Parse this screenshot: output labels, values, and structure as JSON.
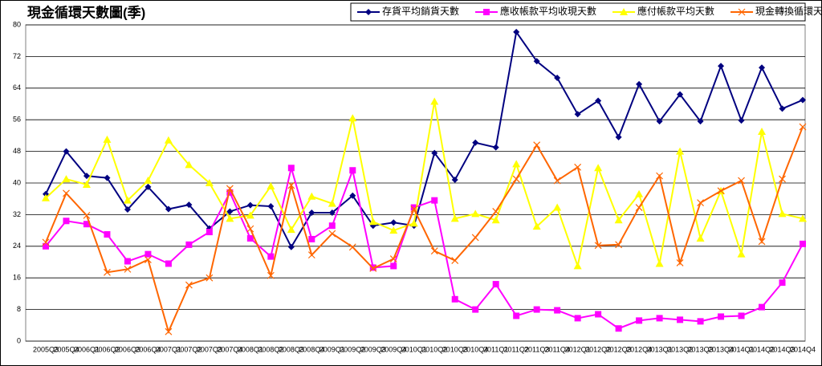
{
  "chart_data": {
    "type": "line",
    "title": "現金循環天數圖(季)",
    "categories": [
      "2005Q3",
      "2005Q4",
      "2006Q1",
      "2006Q2",
      "2006Q3",
      "2006Q4",
      "2007Q1",
      "2007Q2",
      "2007Q3",
      "2007Q4",
      "2008Q1",
      "2008Q2",
      "2008Q3",
      "2008Q4",
      "2009Q1",
      "2009Q2",
      "2009Q3",
      "2009Q4",
      "2010Q1",
      "2010Q2",
      "2010Q3",
      "2010Q4",
      "2011Q1",
      "2011Q2",
      "2011Q3",
      "2011Q4",
      "2012Q1",
      "2012Q2",
      "2012Q3",
      "2012Q4",
      "2013Q1",
      "2013Q2",
      "2013Q3",
      "2013Q4",
      "2014Q1",
      "2014Q2",
      "2014Q3",
      "2014Q4"
    ],
    "series": [
      {
        "name": "存貨平均銷貨天數",
        "color": "#000080",
        "marker": "diamond",
        "values": [
          37.2,
          48,
          41.8,
          41.3,
          33.3,
          39,
          33.4,
          34.5,
          28.5,
          32.8,
          34.4,
          34.1,
          23.8,
          32.5,
          32.5,
          36.8,
          29.2,
          30,
          29.2,
          47.6,
          40.8,
          50.2,
          49,
          78.2,
          70.8,
          66.6,
          57.4,
          60.8,
          51.6,
          65,
          55.6,
          62.4,
          55.6,
          69.6,
          55.8,
          69.2,
          58.8,
          61
        ]
      },
      {
        "name": "應收帳款平均收現天數",
        "color": "#ff00ff",
        "marker": "square",
        "values": [
          24,
          30.4,
          29.6,
          27,
          20.2,
          22,
          19.6,
          24.4,
          27.6,
          37.6,
          26,
          21.4,
          43.8,
          25.8,
          29.2,
          43.2,
          18.6,
          19,
          33.8,
          35.6,
          10.6,
          8,
          14.4,
          6.4,
          8,
          7.8,
          5.8,
          6.8,
          3.2,
          5.2,
          5.8,
          5.4,
          5,
          6.2,
          6.4,
          8.6,
          14.8,
          24.6
        ]
      },
      {
        "name": "應付帳款平均天數",
        "color": "#ffff00",
        "marker": "triangle",
        "values": [
          36.2,
          41,
          39.6,
          51,
          35.6,
          40.6,
          50.8,
          44.6,
          40,
          31,
          31.8,
          39.2,
          28.2,
          36.6,
          34.8,
          56.4,
          30.2,
          28,
          29.8,
          60.6,
          31,
          32.2,
          30.6,
          44.8,
          29,
          33.8,
          19,
          43.8,
          30.6,
          37.2,
          19.6,
          48,
          26,
          38,
          22,
          53,
          32.2,
          31
        ]
      },
      {
        "name": "現金轉換循環天數",
        "color": "#ff6600",
        "marker": "x",
        "values": [
          25,
          37.4,
          31.8,
          17.4,
          18.2,
          20.6,
          2.4,
          14.2,
          16,
          38.6,
          28.4,
          16.6,
          39.4,
          21.8,
          27.2,
          23.8,
          18.4,
          20.8,
          33.4,
          22.8,
          20.4,
          26.2,
          32.8,
          41,
          49.6,
          40.6,
          44,
          24.2,
          24.4,
          33.8,
          41.8,
          19.8,
          35,
          38,
          40.6,
          25.2,
          41,
          54.2
        ]
      }
    ],
    "ylim": [
      0,
      80
    ],
    "yticks": [
      0,
      8,
      16,
      24,
      32,
      40,
      48,
      56,
      64,
      72,
      80
    ],
    "grid": true,
    "legend": "top-right"
  }
}
